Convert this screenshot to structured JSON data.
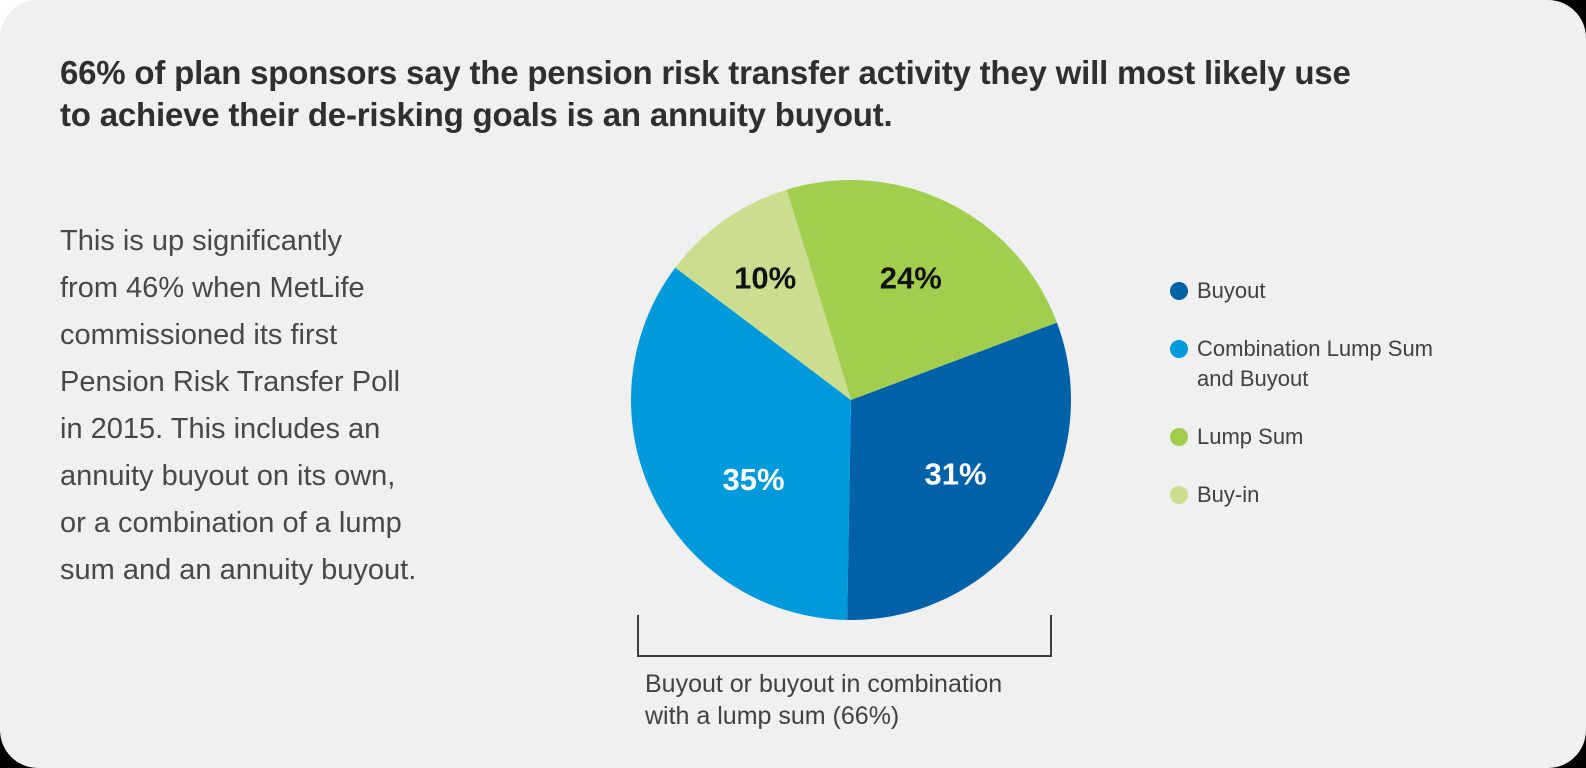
{
  "card": {
    "headline": "66% of plan sponsors say the pension risk transfer activity they will most likely use\nto achieve their de-risking goals is an annuity buyout.",
    "body_text": "This is up significantly\nfrom 46% when MetLife\ncommissioned its first\nPension Risk Transfer Poll\nin 2015. This includes an\nannuity buyout on its own,\nor a combination of a lump\nsum and an annuity buyout."
  },
  "chart_data": {
    "type": "pie",
    "title": "66% of plan sponsors say the pension risk transfer activity they will most likely use to achieve their de-risking goals is an annuity buyout.",
    "start_angle_deg": -17,
    "direction": "clockwise",
    "slices": [
      {
        "label": "Lump Sum",
        "value": 24,
        "data_label": "24%",
        "color": "#A2CE4E",
        "label_color": "#111111",
        "label_angle_deg": 26,
        "label_radius_frac": 0.62
      },
      {
        "label": "Buyout",
        "value": 31,
        "data_label": "31%",
        "color": "#0061A8",
        "label_color": "#FFFFFF",
        "label_angle_deg": 125,
        "label_radius_frac": 0.58
      },
      {
        "label": "Combination Lump Sum and Buyout",
        "value": 35,
        "data_label": "35%",
        "color": "#0099DB",
        "label_color": "#FFFFFF",
        "label_angle_deg": 231,
        "label_radius_frac": 0.57
      },
      {
        "label": "Buy-in",
        "value": 10,
        "data_label": "10%",
        "color": "#CBDD8E",
        "label_color": "#111111",
        "label_angle_deg": 325,
        "label_radius_frac": 0.68
      }
    ],
    "legend": [
      {
        "label": "Buyout",
        "color": "#0061A8"
      },
      {
        "label": "Combination Lump Sum\nand Buyout",
        "color": "#0099DB"
      },
      {
        "label": "Lump Sum",
        "color": "#A2CE4E"
      },
      {
        "label": "Buy-in",
        "color": "#CBDD8E"
      }
    ],
    "legend_position": "right",
    "annotation": {
      "bracket_label": "Buyout or buyout in combination\nwith a lump sum (66%)"
    }
  },
  "colors": {
    "card_background": "#F0F0F1",
    "headline_text": "#2F2F30",
    "body_text": "#48484A",
    "legend_text": "#414144",
    "bracket": "#3E3E3E",
    "pie_dark_blue": "#0061A8",
    "pie_light_blue": "#0099DB",
    "pie_green": "#A2CE4E",
    "pie_light_green": "#CBDD8E"
  }
}
